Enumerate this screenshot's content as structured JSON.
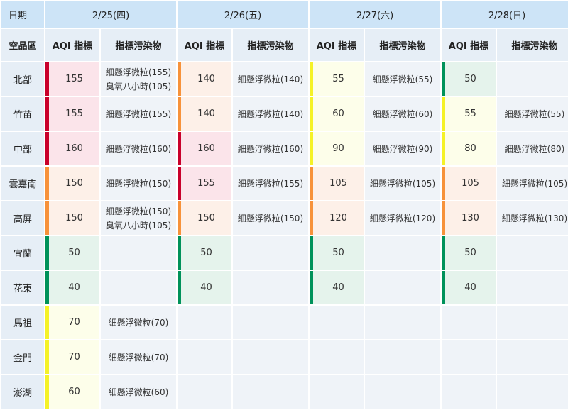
{
  "header": {
    "date_label": "日期",
    "region_label": "空品區",
    "dates": [
      "2/25(四)",
      "2/26(五)",
      "2/27(六)",
      "2/28(日)"
    ],
    "aqi_label": "AQI 指標",
    "pollutant_label": "指標污染物"
  },
  "colors": {
    "red": {
      "bar": "#c9002b",
      "bg": "#fbe4ea"
    },
    "orange": {
      "bar": "#f7923a",
      "bg": "#fdf0e8"
    },
    "yellow": {
      "bar": "#f5f227",
      "bg": "#fdfeea"
    },
    "green": {
      "bar": "#00925a",
      "bg": "#e5f3ec"
    }
  },
  "rows": [
    {
      "region": "北部",
      "days": [
        {
          "aqi": "155",
          "level": "red",
          "pollutants": [
            "細懸浮微粒(155)",
            "臭氧八小時(105)"
          ]
        },
        {
          "aqi": "140",
          "level": "orange",
          "pollutants": [
            "細懸浮微粒(140)"
          ]
        },
        {
          "aqi": "55",
          "level": "yellow",
          "pollutants": [
            "細懸浮微粒(55)"
          ]
        },
        {
          "aqi": "50",
          "level": "green",
          "pollutants": []
        }
      ]
    },
    {
      "region": "竹苗",
      "days": [
        {
          "aqi": "155",
          "level": "red",
          "pollutants": [
            "細懸浮微粒(155)"
          ]
        },
        {
          "aqi": "140",
          "level": "orange",
          "pollutants": [
            "細懸浮微粒(140)"
          ]
        },
        {
          "aqi": "60",
          "level": "yellow",
          "pollutants": [
            "細懸浮微粒(60)"
          ]
        },
        {
          "aqi": "55",
          "level": "yellow",
          "pollutants": [
            "細懸浮微粒(55)"
          ]
        }
      ]
    },
    {
      "region": "中部",
      "days": [
        {
          "aqi": "160",
          "level": "red",
          "pollutants": [
            "細懸浮微粒(160)"
          ]
        },
        {
          "aqi": "160",
          "level": "red",
          "pollutants": [
            "細懸浮微粒(160)"
          ]
        },
        {
          "aqi": "90",
          "level": "yellow",
          "pollutants": [
            "細懸浮微粒(90)"
          ]
        },
        {
          "aqi": "80",
          "level": "yellow",
          "pollutants": [
            "細懸浮微粒(80)"
          ]
        }
      ]
    },
    {
      "region": "雲嘉南",
      "days": [
        {
          "aqi": "150",
          "level": "orange",
          "pollutants": [
            "細懸浮微粒(150)"
          ]
        },
        {
          "aqi": "155",
          "level": "red",
          "pollutants": [
            "細懸浮微粒(155)"
          ]
        },
        {
          "aqi": "105",
          "level": "orange",
          "pollutants": [
            "細懸浮微粒(105)"
          ]
        },
        {
          "aqi": "105",
          "level": "orange",
          "pollutants": [
            "細懸浮微粒(105)"
          ]
        }
      ]
    },
    {
      "region": "高屏",
      "days": [
        {
          "aqi": "150",
          "level": "orange",
          "pollutants": [
            "細懸浮微粒(150)",
            "臭氧八小時(105)"
          ]
        },
        {
          "aqi": "150",
          "level": "orange",
          "pollutants": [
            "細懸浮微粒(150)"
          ]
        },
        {
          "aqi": "120",
          "level": "orange",
          "pollutants": [
            "細懸浮微粒(120)"
          ]
        },
        {
          "aqi": "130",
          "level": "orange",
          "pollutants": [
            "細懸浮微粒(130)"
          ]
        }
      ]
    },
    {
      "region": "宜蘭",
      "days": [
        {
          "aqi": "50",
          "level": "green",
          "pollutants": []
        },
        {
          "aqi": "50",
          "level": "green",
          "pollutants": []
        },
        {
          "aqi": "50",
          "level": "green",
          "pollutants": []
        },
        {
          "aqi": "50",
          "level": "green",
          "pollutants": []
        }
      ]
    },
    {
      "region": "花東",
      "days": [
        {
          "aqi": "40",
          "level": "green",
          "pollutants": []
        },
        {
          "aqi": "40",
          "level": "green",
          "pollutants": []
        },
        {
          "aqi": "40",
          "level": "green",
          "pollutants": []
        },
        {
          "aqi": "40",
          "level": "green",
          "pollutants": []
        }
      ]
    },
    {
      "region": "馬祖",
      "days": [
        {
          "aqi": "70",
          "level": "yellow",
          "pollutants": [
            "細懸浮微粒(70)"
          ]
        },
        null,
        null,
        null
      ]
    },
    {
      "region": "金門",
      "days": [
        {
          "aqi": "70",
          "level": "yellow",
          "pollutants": [
            "細懸浮微粒(70)"
          ]
        },
        null,
        null,
        null
      ]
    },
    {
      "region": "澎湖",
      "days": [
        {
          "aqi": "60",
          "level": "yellow",
          "pollutants": [
            "細懸浮微粒(60)"
          ]
        },
        null,
        null,
        null
      ]
    }
  ]
}
